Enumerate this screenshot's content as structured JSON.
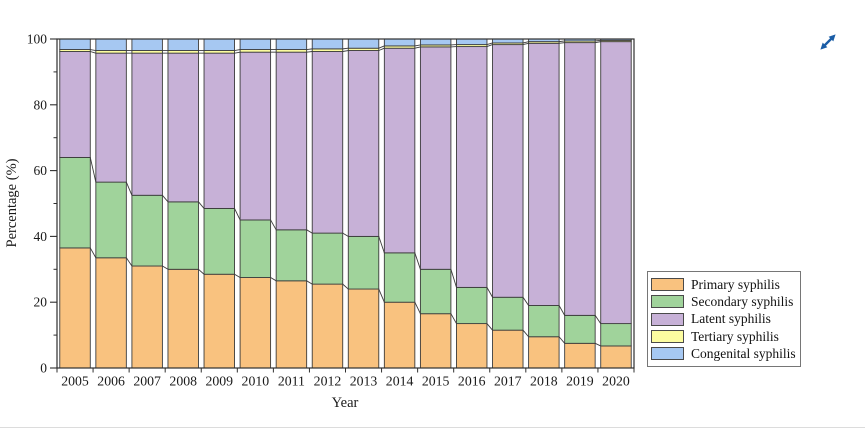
{
  "page": {
    "background": "#ffffff"
  },
  "toolbar": {
    "expand_icon_color": "#1A5DA6"
  },
  "chart_data": {
    "type": "bar",
    "stacked": true,
    "title": "",
    "xlabel": "Year",
    "ylabel": "Percentage (%)",
    "ylim": [
      0,
      100
    ],
    "yticks_major": [
      0,
      20,
      40,
      60,
      80,
      100
    ],
    "yticks_minor": [
      10,
      30,
      50,
      70,
      90
    ],
    "grid": false,
    "legend_position": "outside-right-bottom",
    "bar_outline_color": "#3C3C3C",
    "frame_color": "#2F2F2F",
    "text_color": "#1A1A1A",
    "categories": [
      "2005",
      "2006",
      "2007",
      "2008",
      "2009",
      "2010",
      "2011",
      "2012",
      "2013",
      "2014",
      "2015",
      "2016",
      "2017",
      "2018",
      "2019",
      "2020"
    ],
    "series": [
      {
        "name": "Primary syphilis",
        "color": "#F9C27F",
        "values": [
          36.5,
          33.5,
          31.0,
          30.0,
          28.5,
          27.5,
          26.5,
          25.5,
          24.0,
          20.0,
          16.5,
          13.5,
          11.5,
          9.5,
          7.5,
          6.7
        ]
      },
      {
        "name": "Secondary syphilis",
        "color": "#A0D39B",
        "values": [
          27.5,
          23.0,
          21.5,
          20.5,
          20.0,
          17.5,
          15.5,
          15.5,
          16.0,
          15.0,
          13.5,
          11.0,
          10.0,
          9.5,
          8.5,
          6.8
        ]
      },
      {
        "name": "Latent syphilis",
        "color": "#C7B1D7",
        "values": [
          32.2,
          39.2,
          43.2,
          45.2,
          47.2,
          51.0,
          54.0,
          55.2,
          56.5,
          62.2,
          67.6,
          73.2,
          76.8,
          79.7,
          82.9,
          85.7
        ]
      },
      {
        "name": "Tertiary syphilis",
        "color": "#FCFCA0",
        "values": [
          0.6,
          0.8,
          0.8,
          0.8,
          0.8,
          0.8,
          0.8,
          0.8,
          0.7,
          0.7,
          0.6,
          0.6,
          0.5,
          0.5,
          0.5,
          0.4
        ]
      },
      {
        "name": "Congenital syphilis",
        "color": "#A6C8F2",
        "values": [
          3.2,
          3.5,
          3.5,
          3.5,
          3.5,
          3.2,
          3.2,
          3.0,
          2.8,
          2.1,
          1.8,
          1.7,
          1.2,
          0.8,
          0.6,
          0.4
        ]
      }
    ]
  }
}
